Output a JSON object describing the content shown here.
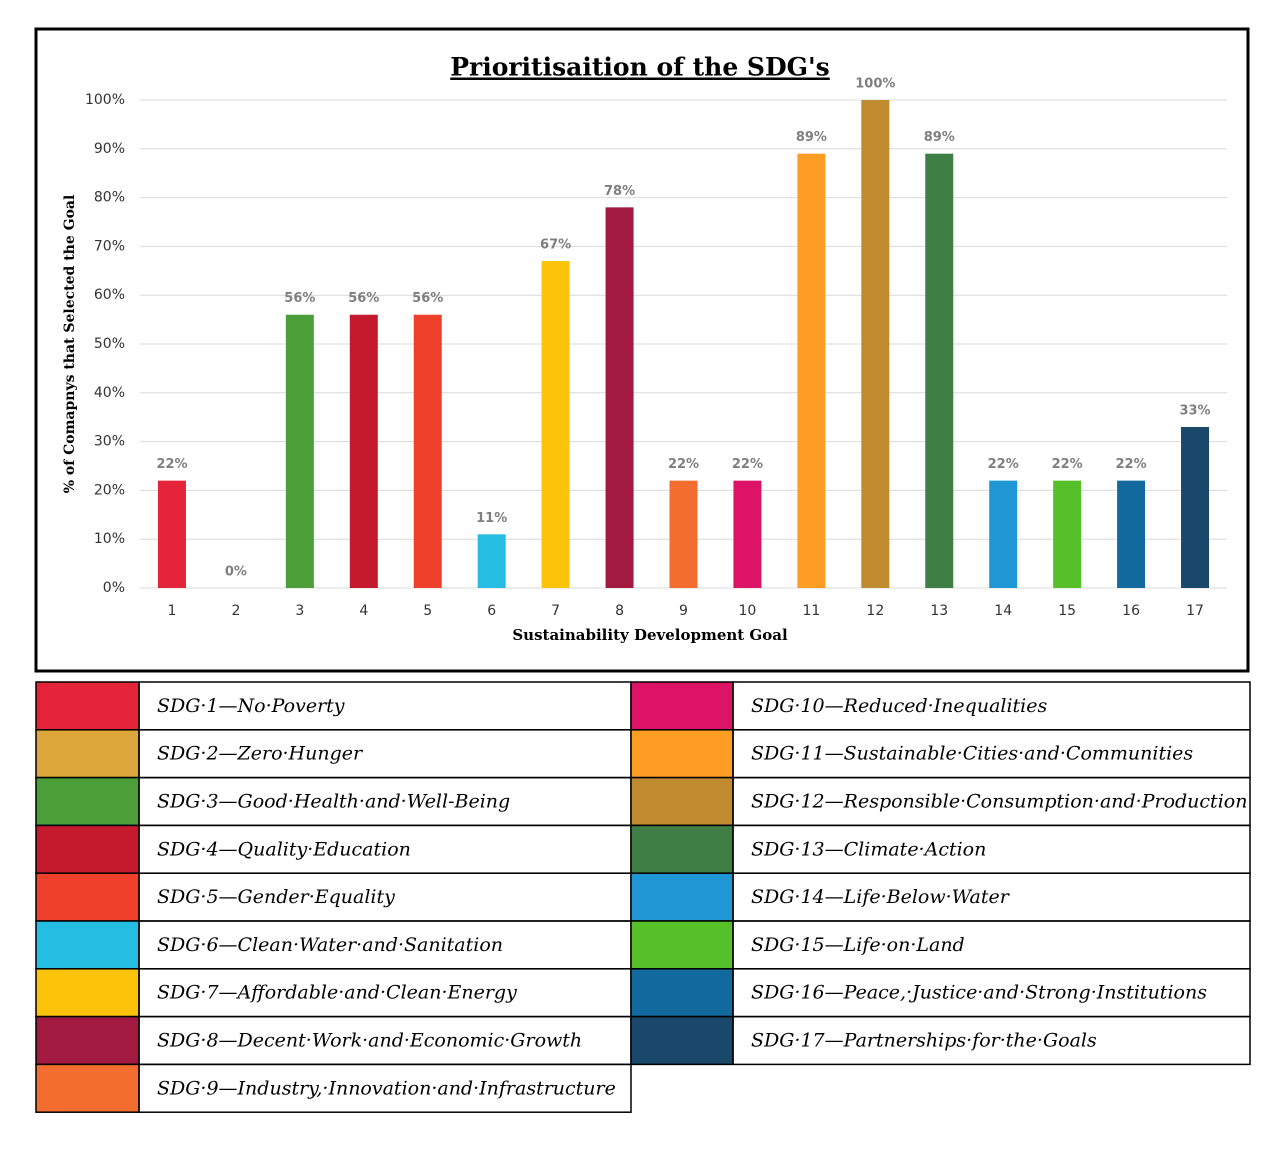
{
  "chart_data": {
    "type": "bar",
    "title": "Prioritisaition of the SDG's",
    "x_label": "Sustainability Development Goal",
    "y_label": "% of Comapnys that Selected the Goal",
    "categories": [
      "1",
      "2",
      "3",
      "4",
      "5",
      "6",
      "7",
      "8",
      "9",
      "10",
      "11",
      "12",
      "13",
      "14",
      "15",
      "16",
      "17"
    ],
    "values": [
      22,
      0,
      56,
      56,
      56,
      11,
      67,
      78,
      22,
      22,
      89,
      100,
      89,
      22,
      22,
      22,
      33
    ],
    "value_labels": [
      "22%",
      "0%",
      "56%",
      "56%",
      "56%",
      "11%",
      "67%",
      "78%",
      "22%",
      "22%",
      "89%",
      "100%",
      "89%",
      "22%",
      "22%",
      "22%",
      "33%"
    ],
    "colors": [
      "#e5243b",
      "#dda63a",
      "#4c9f38",
      "#c5192d",
      "#ef402b",
      "#26bde2",
      "#fcc30b",
      "#a21942",
      "#f36d2f",
      "#dd1367",
      "#fd9d24",
      "#bf8b2e",
      "#3f7e44",
      "#1f97d4",
      "#56c02b",
      "#126a9f",
      "#19486a"
    ],
    "ylim": [
      0,
      100
    ],
    "yticks": [
      {
        "value": 0,
        "label": "0%"
      },
      {
        "value": 10,
        "label": "10%"
      },
      {
        "value": 20,
        "label": "20%"
      },
      {
        "value": 30,
        "label": "30%"
      },
      {
        "value": 40,
        "label": "40%"
      },
      {
        "value": 50,
        "label": "50%"
      },
      {
        "value": 60,
        "label": "60%"
      },
      {
        "value": 70,
        "label": "70%"
      },
      {
        "value": 80,
        "label": "80%"
      },
      {
        "value": 90,
        "label": "90%"
      },
      {
        "value": 100,
        "label": "100%"
      }
    ],
    "grid": true,
    "legend": [
      "SDG·1—No·Poverty",
      "SDG·2—Zero·Hunger",
      "SDG·3—Good·Health·and·Well-Being",
      "SDG·4—Quality·Education",
      "SDG·5—Gender·Equality",
      "SDG·6—Clean·Water·and·Sanitation",
      "SDG·7—Affordable·and·Clean·Energy",
      "SDG·8—Decent·Work·and·Economic·Growth",
      "SDG·9—Industry,·Innovation·and·Infrastructure",
      "SDG·10—Reduced·Inequalities",
      "SDG·11—Sustainable·Cities·and·Communities",
      "SDG·12—Responsible·Consumption·and·Production",
      "SDG·13—Climate·Action",
      "SDG·14—Life·Below·Water",
      "SDG·15—Life·on·Land",
      "SDG·16—Peace,·Justice·and·Strong·Institutions",
      "SDG·17—Partnerships·for·the·Goals"
    ]
  }
}
